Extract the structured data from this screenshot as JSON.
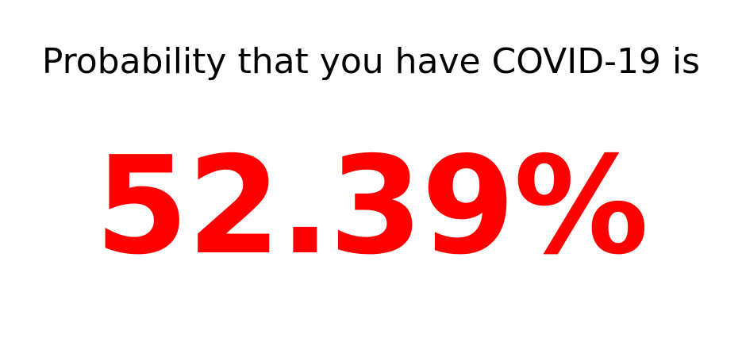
{
  "headline": "Probability that you have COVID-19 is",
  "result": {
    "value_text": "52.39%",
    "percent": 52.39
  },
  "colors": {
    "headline": "#000000",
    "result": "#ff0000",
    "background": "#ffffff"
  }
}
